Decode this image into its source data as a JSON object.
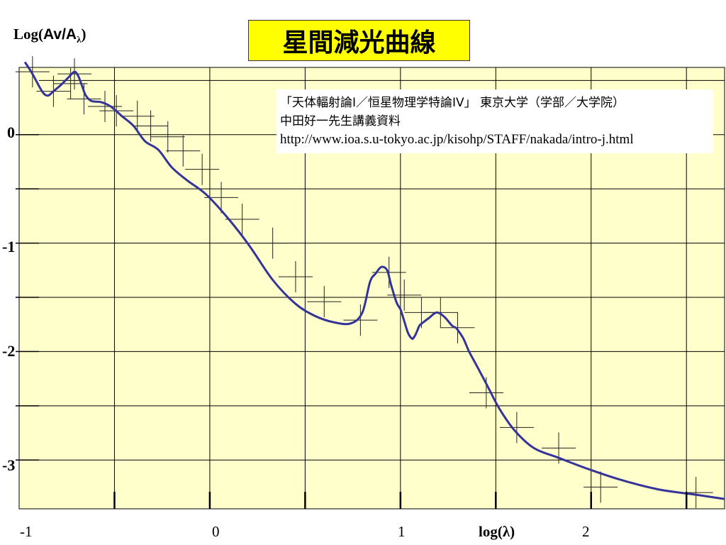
{
  "title": "星間減光曲線",
  "source": {
    "line1": "「天体輻射論I／恒星物理学特論IV」 東京大学（学部／大学院）",
    "line2": "中田好一先生講義資料",
    "url": "http://www.ioa.s.u-tokyo.ac.jp/kisohp/STAFF/nakada/intro-j.html"
  },
  "colors": {
    "plot_bg": "#ffffcc",
    "curve": "#333399",
    "title_bg": "#ffff00",
    "grid": "#000000"
  },
  "chart_data": {
    "type": "line",
    "ylabel_parts": {
      "prefix": "Log(",
      "main": "Av/A",
      "sub": "λ",
      "suffix": ")"
    },
    "xlabel": "log(λ)",
    "x_ticks": [
      "-1",
      "0",
      "1",
      "2"
    ],
    "y_ticks": [
      "0",
      "-1",
      "-2",
      "-3"
    ],
    "xlim": [
      -1.0,
      2.7
    ],
    "ylim": [
      -3.45,
      0.62
    ],
    "grid": true,
    "curve": {
      "x": [
        -0.97,
        -0.93,
        -0.88,
        -0.85,
        -0.82,
        -0.78,
        -0.74,
        -0.71,
        -0.69,
        -0.67,
        -0.65,
        -0.62,
        -0.57,
        -0.52,
        -0.46,
        -0.4,
        -0.34,
        -0.27,
        -0.2,
        -0.12,
        -0.02,
        0.1,
        0.21,
        0.33,
        0.45,
        0.55,
        0.65,
        0.74,
        0.8,
        0.84,
        0.87,
        0.9,
        0.93,
        0.95,
        0.98,
        1.0,
        1.02,
        1.04,
        1.06,
        1.07,
        1.08,
        1.09,
        1.1,
        1.12,
        1.15,
        1.19,
        1.23,
        1.27,
        1.29,
        1.3,
        1.33,
        1.36,
        1.4,
        1.46,
        1.52,
        1.6,
        1.7,
        1.83,
        1.98,
        2.15,
        2.35,
        2.55,
        2.7
      ],
      "y": [
        0.67,
        0.56,
        0.4,
        0.36,
        0.4,
        0.46,
        0.53,
        0.58,
        0.54,
        0.45,
        0.36,
        0.31,
        0.3,
        0.26,
        0.17,
        0.08,
        -0.06,
        -0.14,
        -0.3,
        -0.42,
        -0.55,
        -0.78,
        -1.03,
        -1.34,
        -1.56,
        -1.67,
        -1.73,
        -1.74,
        -1.64,
        -1.36,
        -1.28,
        -1.22,
        -1.25,
        -1.38,
        -1.55,
        -1.61,
        -1.72,
        -1.83,
        -1.88,
        -1.87,
        -1.84,
        -1.8,
        -1.76,
        -1.73,
        -1.69,
        -1.64,
        -1.68,
        -1.76,
        -1.78,
        -1.8,
        -1.88,
        -2.0,
        -2.13,
        -2.33,
        -2.53,
        -2.73,
        -2.89,
        -2.98,
        -3.08,
        -3.18,
        -3.27,
        -3.32,
        -3.36
      ]
    },
    "observations": {
      "x": [
        -0.93,
        -0.82,
        -0.73,
        -0.71,
        -0.66,
        -0.55,
        -0.49,
        -0.38,
        -0.31,
        -0.22,
        -0.14,
        -0.04,
        0.06,
        0.17,
        0.33,
        0.45,
        0.6,
        0.79,
        0.94,
        1.02,
        1.11,
        1.21,
        1.3,
        1.45,
        1.61,
        1.83,
        2.05,
        2.55
      ],
      "y": [
        0.58,
        0.4,
        0.47,
        0.56,
        0.33,
        0.26,
        0.22,
        0.17,
        0.08,
        -0.02,
        -0.15,
        -0.32,
        -0.58,
        -0.78,
        -1.0,
        -1.31,
        -1.54,
        -1.71,
        -1.27,
        -1.48,
        -1.64,
        -1.64,
        -1.78,
        -2.38,
        -2.7,
        -2.89,
        -3.25,
        -3.3
      ]
    }
  }
}
